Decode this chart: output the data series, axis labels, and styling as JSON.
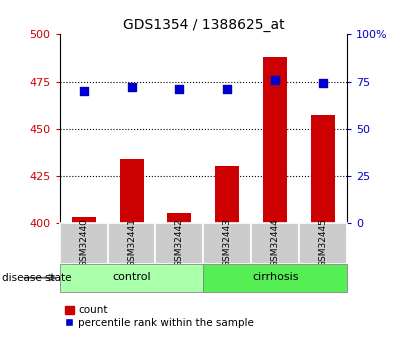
{
  "title": "GDS1354 / 1388625_at",
  "samples": [
    "GSM32440",
    "GSM32441",
    "GSM32442",
    "GSM32443",
    "GSM32444",
    "GSM32445"
  ],
  "counts": [
    403,
    434,
    405,
    430,
    488,
    457
  ],
  "percentile_ranks": [
    70,
    72,
    71,
    71,
    76,
    74
  ],
  "ylim_left": [
    400,
    500
  ],
  "ylim_right": [
    0,
    100
  ],
  "yticks_left": [
    400,
    425,
    450,
    475,
    500
  ],
  "yticks_right": [
    0,
    25,
    50,
    75,
    100
  ],
  "ytick_labels_left": [
    "400",
    "425",
    "450",
    "475",
    "500"
  ],
  "ytick_labels_right": [
    "0",
    "25",
    "50",
    "75",
    "100%"
  ],
  "bar_color": "#cc0000",
  "dot_color": "#0000cc",
  "control_color": "#aaffaa",
  "cirrhosis_color": "#55ee55",
  "sample_bg": "#cccccc",
  "bar_width": 0.5,
  "dot_size": 28,
  "legend_count_label": "count",
  "legend_pct_label": "percentile rank within the sample",
  "group_label": "disease state",
  "group_names": [
    "control",
    "cirrhosis"
  ],
  "group_ranges": [
    [
      0,
      3
    ],
    [
      3,
      6
    ]
  ],
  "n_samples": 6
}
